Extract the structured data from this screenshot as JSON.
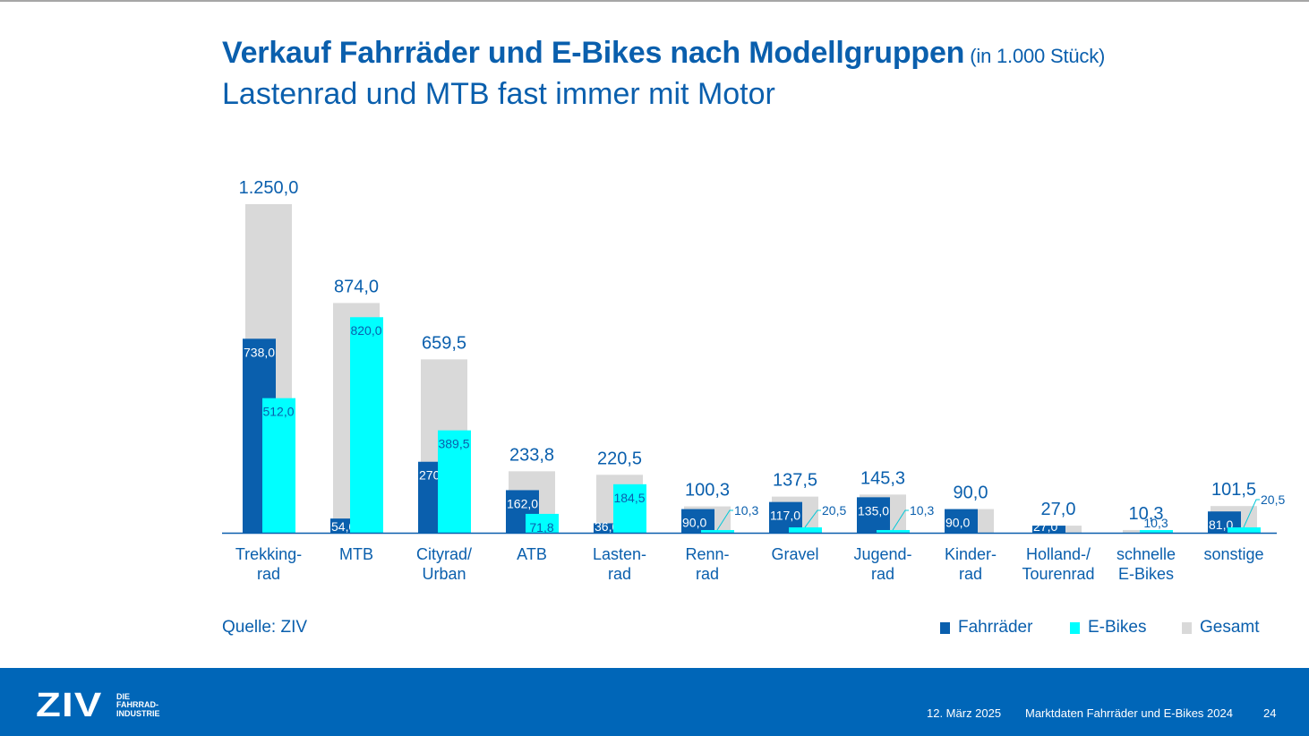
{
  "header": {
    "title": "Verkauf Fahrräder und E-Bikes nach Modellgruppen",
    "unit": "(in 1.000 Stück)",
    "subtitle": "Lastenrad und MTB fast immer mit Motor"
  },
  "source": "Quelle: ZIV",
  "legend": [
    {
      "label": "Fahrräder",
      "color": "#0a5fad"
    },
    {
      "label": "E-Bikes",
      "color": "#00ffff"
    },
    {
      "label": "Gesamt",
      "color": "#d9d9d9"
    }
  ],
  "footer": {
    "logo_main": "ZIV",
    "logo_sub": [
      "DIE",
      "FAHRRAD-",
      "INDUSTRIE"
    ],
    "date": "12. März 2025",
    "doc_title": "Marktdaten Fahrräder und E-Bikes 2024",
    "page": "24",
    "background": "#0066b8"
  },
  "chart_data": {
    "type": "bar",
    "title": "Verkauf Fahrräder und E-Bikes nach Modellgruppen (in 1.000 Stück)",
    "xlabel": "",
    "ylabel": "",
    "ylim": [
      0,
      1250
    ],
    "grid": false,
    "legend_position": "bottom-right",
    "categories": [
      [
        "Trekking-",
        "rad"
      ],
      [
        "MTB"
      ],
      [
        "Cityrad/",
        "Urban"
      ],
      [
        "ATB"
      ],
      [
        "Lasten-",
        "rad"
      ],
      [
        "Renn-",
        "rad"
      ],
      [
        "Gravel"
      ],
      [
        "Jugend-",
        "rad"
      ],
      [
        "Kinder-",
        "rad"
      ],
      [
        "Holland-/",
        "Tourenrad"
      ],
      [
        "schnelle",
        "E-Bikes"
      ],
      [
        "sonstige"
      ]
    ],
    "series": [
      {
        "name": "Gesamt",
        "color": "#d9d9d9",
        "values": [
          1250.0,
          874.0,
          659.5,
          233.8,
          220.5,
          100.3,
          137.5,
          145.3,
          90.0,
          27.0,
          10.3,
          101.5
        ],
        "labels": [
          "1.250,0",
          "874,0",
          "659,5",
          "233,8",
          "220,5",
          "100,3",
          "137,5",
          "145,3",
          "90,0",
          "27,0",
          "10,3",
          "101,5"
        ]
      },
      {
        "name": "Fahrräder",
        "color": "#0a5fad",
        "values": [
          738.0,
          54.0,
          270.0,
          162.0,
          36.0,
          90.0,
          117.0,
          135.0,
          90.0,
          27.0,
          null,
          81.0
        ],
        "labels": [
          "738,0",
          "54,0",
          "270,0",
          "162,0",
          "36,0",
          "90,0",
          "117,0",
          "135,0",
          "90,0",
          "27,0",
          "",
          "81,0"
        ]
      },
      {
        "name": "E-Bikes",
        "color": "#00ffff",
        "values": [
          512.0,
          820.0,
          389.5,
          71.8,
          184.5,
          10.3,
          20.5,
          10.3,
          null,
          null,
          10.3,
          20.5
        ],
        "labels": [
          "512,0",
          "820,0",
          "389,5",
          "71,8",
          "184,5",
          "10,3",
          "20,5",
          "10,3",
          "",
          "",
          "10,3",
          "20,5"
        ]
      }
    ],
    "label_color_total": "#0a5fad",
    "axis_color": "#0a5fad"
  }
}
